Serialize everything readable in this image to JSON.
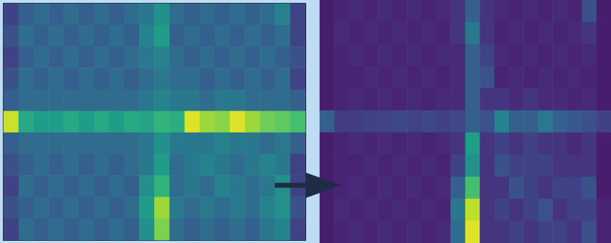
{
  "chart_data": [
    {
      "type": "heatmap",
      "tick_labels": false,
      "zlim": [
        0,
        1
      ],
      "cells": [
        [
          0.2,
          0.3,
          0.35,
          0.3,
          0.35,
          0.3,
          0.35,
          0.3,
          0.35,
          0.4,
          0.5,
          0.35,
          0.3,
          0.35,
          0.3,
          0.35,
          0.3,
          0.35,
          0.45,
          0.2
        ],
        [
          0.25,
          0.35,
          0.3,
          0.35,
          0.3,
          0.35,
          0.3,
          0.35,
          0.3,
          0.45,
          0.55,
          0.3,
          0.35,
          0.3,
          0.35,
          0.3,
          0.35,
          0.3,
          0.35,
          0.2
        ],
        [
          0.2,
          0.3,
          0.35,
          0.3,
          0.35,
          0.3,
          0.35,
          0.3,
          0.35,
          0.4,
          0.45,
          0.35,
          0.3,
          0.35,
          0.3,
          0.35,
          0.3,
          0.35,
          0.3,
          0.25
        ],
        [
          0.25,
          0.35,
          0.3,
          0.35,
          0.3,
          0.35,
          0.3,
          0.35,
          0.3,
          0.35,
          0.4,
          0.35,
          0.35,
          0.3,
          0.35,
          0.3,
          0.35,
          0.3,
          0.35,
          0.2
        ],
        [
          0.3,
          0.35,
          0.35,
          0.35,
          0.35,
          0.35,
          0.35,
          0.35,
          0.35,
          0.4,
          0.45,
          0.4,
          0.4,
          0.35,
          0.4,
          0.4,
          0.35,
          0.35,
          0.35,
          0.3
        ],
        [
          0.92,
          0.6,
          0.55,
          0.55,
          0.6,
          0.55,
          0.6,
          0.55,
          0.6,
          0.58,
          0.65,
          0.62,
          0.95,
          0.85,
          0.82,
          0.95,
          0.85,
          0.78,
          0.75,
          0.7
        ],
        [
          0.3,
          0.35,
          0.35,
          0.35,
          0.35,
          0.35,
          0.35,
          0.35,
          0.35,
          0.4,
          0.5,
          0.4,
          0.4,
          0.4,
          0.45,
          0.4,
          0.4,
          0.35,
          0.4,
          0.3
        ],
        [
          0.25,
          0.3,
          0.35,
          0.3,
          0.35,
          0.3,
          0.35,
          0.3,
          0.35,
          0.4,
          0.55,
          0.35,
          0.4,
          0.45,
          0.4,
          0.35,
          0.4,
          0.45,
          0.4,
          0.2
        ],
        [
          0.2,
          0.35,
          0.3,
          0.35,
          0.3,
          0.35,
          0.3,
          0.35,
          0.3,
          0.5,
          0.65,
          0.35,
          0.4,
          0.35,
          0.45,
          0.4,
          0.35,
          0.4,
          0.5,
          0.2
        ],
        [
          0.25,
          0.3,
          0.35,
          0.3,
          0.35,
          0.3,
          0.35,
          0.3,
          0.35,
          0.55,
          0.85,
          0.4,
          0.35,
          0.4,
          0.35,
          0.4,
          0.35,
          0.45,
          0.5,
          0.25
        ],
        [
          0.2,
          0.35,
          0.3,
          0.35,
          0.3,
          0.35,
          0.3,
          0.35,
          0.3,
          0.5,
          0.8,
          0.35,
          0.3,
          0.35,
          0.3,
          0.35,
          0.3,
          0.4,
          0.45,
          0.2
        ]
      ]
    },
    {
      "type": "heatmap",
      "tick_labels": false,
      "zlim": [
        0,
        1
      ],
      "cells": [
        [
          0.08,
          0.1,
          0.12,
          0.1,
          0.12,
          0.1,
          0.12,
          0.1,
          0.12,
          0.15,
          0.3,
          0.15,
          0.12,
          0.1,
          0.12,
          0.1,
          0.12,
          0.1,
          0.25,
          0.08
        ],
        [
          0.08,
          0.12,
          0.1,
          0.12,
          0.1,
          0.12,
          0.1,
          0.12,
          0.1,
          0.15,
          0.4,
          0.15,
          0.1,
          0.12,
          0.1,
          0.12,
          0.1,
          0.12,
          0.15,
          0.08
        ],
        [
          0.08,
          0.1,
          0.12,
          0.1,
          0.12,
          0.1,
          0.12,
          0.1,
          0.12,
          0.12,
          0.3,
          0.2,
          0.12,
          0.1,
          0.12,
          0.1,
          0.12,
          0.1,
          0.12,
          0.08
        ],
        [
          0.08,
          0.1,
          0.1,
          0.12,
          0.1,
          0.12,
          0.1,
          0.12,
          0.1,
          0.12,
          0.3,
          0.25,
          0.1,
          0.12,
          0.1,
          0.12,
          0.1,
          0.12,
          0.1,
          0.08
        ],
        [
          0.08,
          0.1,
          0.12,
          0.1,
          0.12,
          0.1,
          0.12,
          0.1,
          0.12,
          0.12,
          0.3,
          0.15,
          0.15,
          0.12,
          0.15,
          0.12,
          0.12,
          0.1,
          0.12,
          0.08
        ],
        [
          0.3,
          0.18,
          0.18,
          0.2,
          0.2,
          0.22,
          0.2,
          0.22,
          0.2,
          0.22,
          0.3,
          0.25,
          0.45,
          0.3,
          0.3,
          0.4,
          0.3,
          0.28,
          0.25,
          0.2
        ],
        [
          0.08,
          0.1,
          0.12,
          0.1,
          0.12,
          0.1,
          0.12,
          0.1,
          0.12,
          0.15,
          0.55,
          0.15,
          0.2,
          0.15,
          0.2,
          0.15,
          0.15,
          0.12,
          0.15,
          0.08
        ],
        [
          0.08,
          0.1,
          0.1,
          0.12,
          0.1,
          0.12,
          0.1,
          0.12,
          0.1,
          0.2,
          0.5,
          0.15,
          0.25,
          0.2,
          0.2,
          0.2,
          0.15,
          0.15,
          0.15,
          0.08
        ],
        [
          0.08,
          0.1,
          0.12,
          0.1,
          0.12,
          0.1,
          0.12,
          0.1,
          0.12,
          0.3,
          0.7,
          0.15,
          0.15,
          0.25,
          0.2,
          0.15,
          0.2,
          0.2,
          0.25,
          0.08
        ],
        [
          0.08,
          0.12,
          0.1,
          0.12,
          0.1,
          0.12,
          0.1,
          0.12,
          0.1,
          0.4,
          0.9,
          0.15,
          0.2,
          0.15,
          0.2,
          0.25,
          0.15,
          0.2,
          0.2,
          0.1
        ],
        [
          0.08,
          0.1,
          0.12,
          0.1,
          0.12,
          0.1,
          0.12,
          0.1,
          0.12,
          0.35,
          0.95,
          0.15,
          0.15,
          0.2,
          0.15,
          0.2,
          0.2,
          0.15,
          0.25,
          0.1
        ]
      ]
    }
  ]
}
